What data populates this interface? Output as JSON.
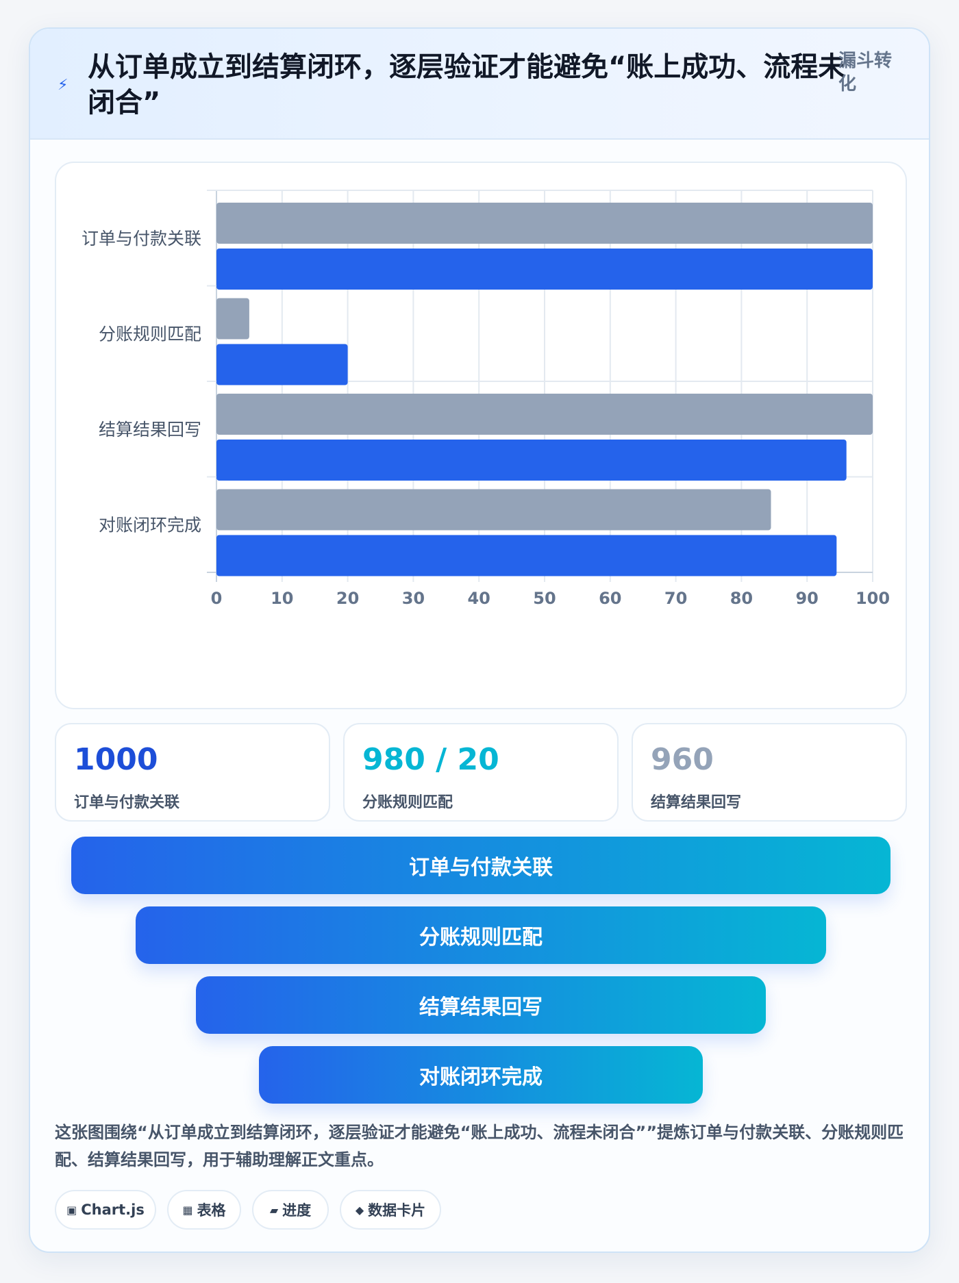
{
  "header": {
    "icon": "lightning-icon",
    "title": "从订单成立到结算闭环，逐层验证才能避免“账上成功、流程未闭合”",
    "tag": "漏斗转化"
  },
  "chart_data": {
    "type": "bar",
    "orientation": "horizontal",
    "categories": [
      "订单与付款关联",
      "分账规则匹配",
      "结算结果回写",
      "对账闭环完成"
    ],
    "series": [
      {
        "color": "#94a3b8",
        "values": [
          100,
          5,
          100,
          84.5
        ]
      },
      {
        "color": "#2563eb",
        "values": [
          100,
          20,
          96,
          94.5
        ]
      }
    ],
    "xlim": [
      0,
      100
    ],
    "xticks": [
      0,
      10,
      20,
      30,
      40,
      50,
      60,
      70,
      80,
      90,
      100
    ],
    "grid": true,
    "legend": "none"
  },
  "stats": [
    {
      "value": "1000",
      "label": "订单与付款关联",
      "color": "#1d4ed8"
    },
    {
      "value": "980 / 20",
      "label": "分账规则匹配",
      "color": "#06b6d4"
    },
    {
      "value": "960",
      "label": "结算结果回写",
      "color": "#94a3b8"
    }
  ],
  "funnel": [
    {
      "label": "订单与付款关联"
    },
    {
      "label": "分账规则匹配"
    },
    {
      "label": "结算结果回写"
    },
    {
      "label": "对账闭环完成"
    }
  ],
  "description": "这张图围绕“从订单成立到结算闭环，逐层验证才能避免“账上成功、流程未闭合””提炼订单与付款关联、分账规则匹配、结算结果回写，用于辅助理解正文重点。",
  "chips": [
    {
      "icon": "chip-square-icon",
      "glyph": "▣",
      "label": "Chart.js"
    },
    {
      "icon": "table-grid-icon",
      "glyph": "▦",
      "label": "表格"
    },
    {
      "icon": "progress-bar-icon",
      "glyph": "▰",
      "label": "进度"
    },
    {
      "icon": "diamond-icon",
      "glyph": "◆",
      "label": "数据卡片"
    }
  ]
}
